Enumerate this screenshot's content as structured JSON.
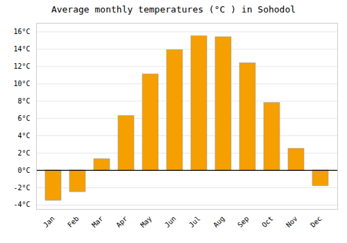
{
  "chart_data": {
    "type": "bar",
    "title": "Average monthly temperatures (°C ) in Sohodol",
    "categories": [
      "Jan",
      "Feb",
      "Mar",
      "Apr",
      "May",
      "Jun",
      "Jul",
      "Aug",
      "Sep",
      "Oct",
      "Nov",
      "Dec"
    ],
    "values": [
      -3.5,
      -2.5,
      1.3,
      6.3,
      11.1,
      13.9,
      15.5,
      15.4,
      12.4,
      7.8,
      2.5,
      -1.8
    ],
    "color": "#F5A000",
    "ylim": [
      -4.5,
      17.0
    ],
    "yticks": [
      {
        "value": -4,
        "label": "-4°C"
      },
      {
        "value": -2,
        "label": "-2°C"
      },
      {
        "value": 0,
        "label": "0°C"
      },
      {
        "value": 2,
        "label": "2°C"
      },
      {
        "value": 4,
        "label": "4°C"
      },
      {
        "value": 6,
        "label": "6°C"
      },
      {
        "value": 8,
        "label": "8°C"
      },
      {
        "value": 10,
        "label": "10°C"
      },
      {
        "value": 12,
        "label": "12°C"
      },
      {
        "value": 14,
        "label": "14°C"
      },
      {
        "value": 16,
        "label": "16°C"
      }
    ],
    "grid": true
  }
}
